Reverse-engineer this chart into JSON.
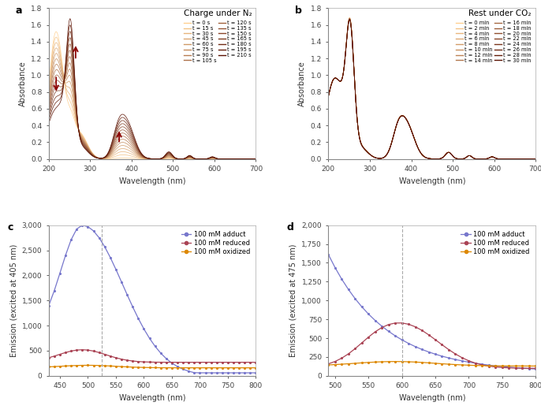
{
  "panel_a": {
    "title": "Charge under N₂",
    "xlabel": "Wavelength (nm)",
    "ylabel": "Absorbance",
    "xlim": [
      200,
      700
    ],
    "ylim": [
      0,
      1.8
    ],
    "yticks": [
      0.0,
      0.2,
      0.4,
      0.6,
      0.8,
      1.0,
      1.2,
      1.4,
      1.6,
      1.8
    ],
    "times_s": [
      0,
      15,
      30,
      45,
      60,
      75,
      90,
      105,
      120,
      135,
      150,
      165,
      180,
      195,
      210
    ],
    "legend_col1": [
      "t = 0 s",
      "t = 15 s",
      "t = 30 s",
      "t = 45 s",
      "t = 60 s",
      "t = 75 s",
      "t = 90 s",
      "t = 105 s"
    ],
    "legend_col2": [
      "t = 120 s",
      "t = 135 s",
      "t = 150 s",
      "t = 165 s",
      "t = 180 s",
      "t = 195 s",
      "t = 210 s"
    ]
  },
  "panel_b": {
    "title": "Rest under CO₂",
    "xlabel": "Wavelength (nm)",
    "ylabel": "Absorbance",
    "xlim": [
      200,
      700
    ],
    "ylim": [
      0,
      1.8
    ],
    "yticks": [
      0.0,
      0.2,
      0.4,
      0.6,
      0.8,
      1.0,
      1.2,
      1.4,
      1.6,
      1.8
    ],
    "times_min": [
      0,
      2,
      4,
      6,
      8,
      10,
      12,
      14,
      16,
      18,
      20,
      22,
      24,
      26,
      28,
      30
    ],
    "legend_col1": [
      "t = 0 min",
      "t = 2 min",
      "t = 4 min",
      "t = 6 min",
      "t = 8 min",
      "t = 10 min",
      "t = 12 min",
      "t = 14 min"
    ],
    "legend_col2": [
      "t = 16 min",
      "t = 18 min",
      "t = 20 min",
      "t = 22 min",
      "t = 24 min",
      "t = 26 min",
      "t = 28 min",
      "t = 30 min"
    ]
  },
  "panel_c": {
    "xlabel": "Wavelength (nm)",
    "ylabel": "Emission (excited at 405 nm)",
    "xlim": [
      430,
      800
    ],
    "ylim": [
      0,
      3000
    ],
    "yticks": [
      0,
      500,
      1000,
      1500,
      2000,
      2500,
      3000
    ],
    "dashed_x": 525
  },
  "panel_d": {
    "xlabel": "Wavelength (nm)",
    "ylabel": "Emission (excited at 475 nm)",
    "xlim": [
      490,
      800
    ],
    "ylim": [
      0,
      2000
    ],
    "yticks": [
      0,
      250,
      500,
      750,
      1000,
      1250,
      1500,
      1750,
      2000
    ],
    "dashed_x": 600
  },
  "arrow_color": "#8b0000",
  "label_fontsize": 7,
  "tick_fontsize": 6.5,
  "title_fontsize": 7.5
}
